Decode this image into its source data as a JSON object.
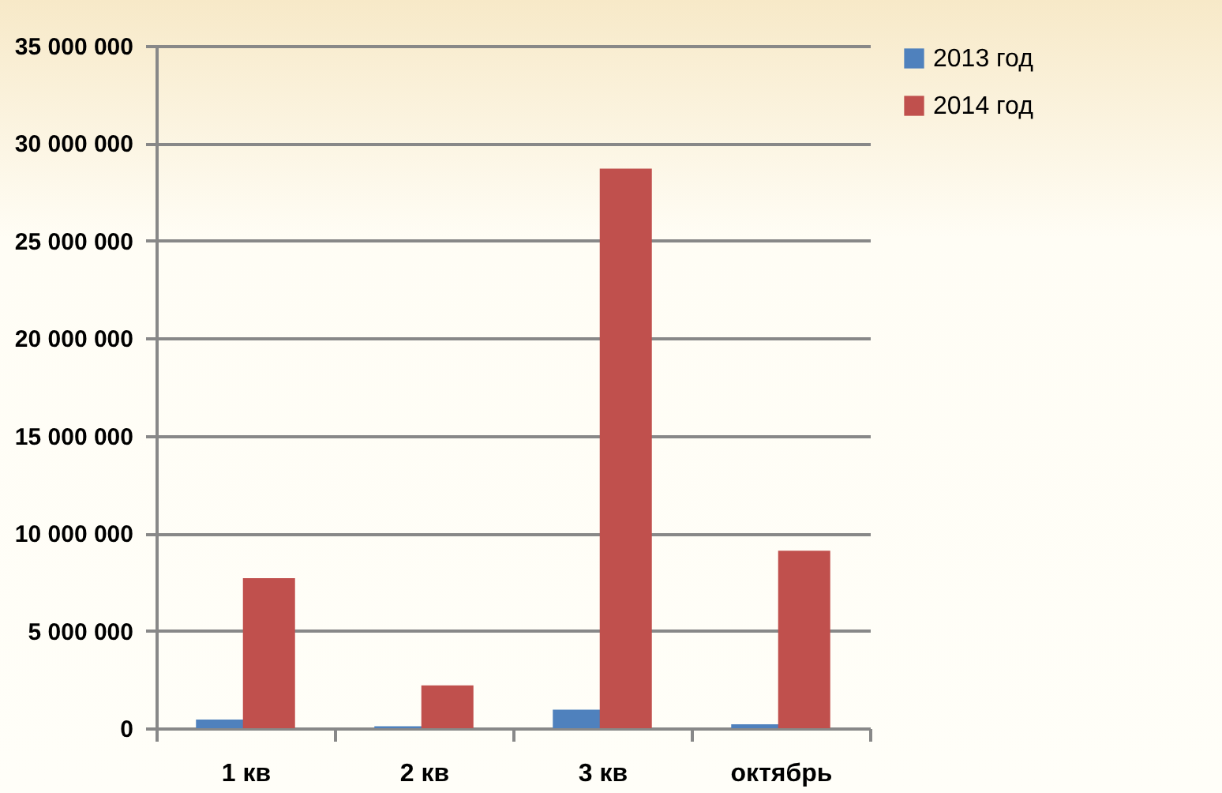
{
  "chart_data": {
    "type": "bar",
    "categories": [
      "1 кв",
      "2 кв",
      "3 кв",
      "октябрь"
    ],
    "series": [
      {
        "name": "2013 год",
        "color": "#4f81bd",
        "values": [
          450000,
          100000,
          950000,
          200000
        ]
      },
      {
        "name": "2014 год",
        "color": "#c0504d",
        "values": [
          7700000,
          2200000,
          28700000,
          9100000
        ]
      }
    ],
    "ylim": [
      0,
      35000000
    ],
    "yticks": [
      {
        "value": 0,
        "label": "0"
      },
      {
        "value": 5000000,
        "label": "5 000 000"
      },
      {
        "value": 10000000,
        "label": "10 000 000"
      },
      {
        "value": 15000000,
        "label": "15 000 000"
      },
      {
        "value": 20000000,
        "label": "20 000 000"
      },
      {
        "value": 25000000,
        "label": "25 000 000"
      },
      {
        "value": 30000000,
        "label": "30 000 000"
      },
      {
        "value": 35000000,
        "label": "35 000 000"
      }
    ],
    "grid": "y",
    "legend": "right"
  }
}
